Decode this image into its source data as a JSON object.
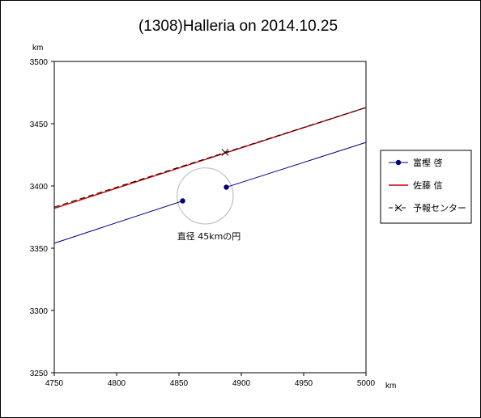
{
  "chart_data": {
    "type": "line",
    "title": "(1308)Halleria on 2014.10.25",
    "xunit": "km",
    "yunit": "km",
    "xlim": [
      4750,
      5000
    ],
    "ylim": [
      3250,
      3500
    ],
    "xticks": [
      "4750",
      "4800",
      "4850",
      "4900",
      "4950",
      "5000"
    ],
    "yticks": [
      "3250",
      "3300",
      "3350",
      "3400",
      "3450",
      "3500"
    ],
    "grid": false,
    "legend": "right",
    "series": [
      {
        "name": "富樫 啓",
        "color": "#000080",
        "segments": [
          [
            [
              4750,
              3354
            ],
            [
              4853,
              3388
            ]
          ],
          [
            [
              4888,
              3399
            ],
            [
              5000,
              3435
            ]
          ]
        ],
        "points": [
          [
            4853,
            3388
          ],
          [
            4888,
            3399
          ]
        ]
      },
      {
        "name": "佐藤 信",
        "color": "#cc0000",
        "segments": [
          [
            [
              4750,
              3382
            ],
            [
              5000,
              3463
            ]
          ]
        ]
      },
      {
        "name": "予報センター",
        "color": "#000000",
        "segments": [
          [
            [
              4750,
              3383
            ],
            [
              5000,
              3463
            ]
          ]
        ],
        "points": [
          [
            4887,
            3427
          ]
        ]
      }
    ],
    "circle": {
      "center": [
        4871,
        3392
      ],
      "diameter": 45,
      "color": "#c0c0c0",
      "label": "直径 45kmの円"
    }
  }
}
